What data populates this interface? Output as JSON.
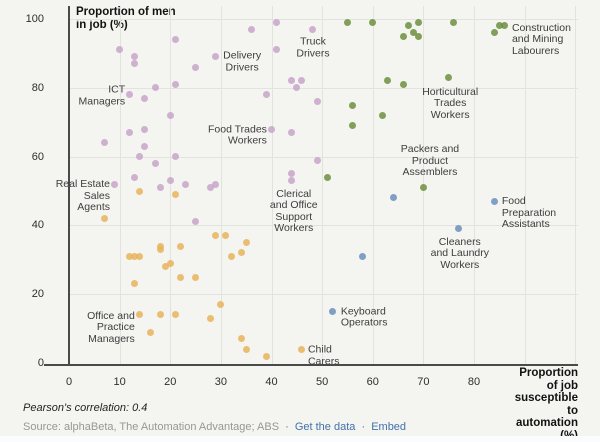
{
  "chart": {
    "y_axis_title_lines": [
      "Proportion of men",
      "in job (%)"
    ],
    "x_axis_title_lines": [
      "Proportion of job",
      "susceptible to",
      "automation (%)"
    ],
    "footer": {
      "correlation": "Pearson's correlation: 0.4",
      "source_prefix": "Source: alphaBeta, The Automation Advantage; ABS",
      "separator": "·",
      "link1": "Get the data",
      "link2": "Embed"
    }
  },
  "chart_data": {
    "type": "scatter",
    "title": "",
    "xlabel": "Proportion of job susceptible to automation (%)",
    "ylabel": "Proportion of men in job (%)",
    "xlim": [
      0,
      100
    ],
    "ylim": [
      0,
      100
    ],
    "x_ticks": [
      0,
      10,
      20,
      30,
      40,
      50,
      60,
      70,
      80
    ],
    "x_gridlines": [
      10,
      20,
      30,
      40,
      50,
      60,
      70,
      80,
      90,
      100
    ],
    "y_ticks": [
      0,
      20,
      40,
      60,
      80,
      100
    ],
    "y_gridlines": [
      20,
      40,
      60,
      80,
      100
    ],
    "grid": true,
    "legend": "none",
    "annotation_note": "Pearson's correlation: 0.4",
    "series": [
      {
        "name": "purple",
        "color": "#c7a3c9",
        "points": [
          [
            10,
            91
          ],
          [
            13,
            89
          ],
          [
            13,
            87
          ],
          [
            21,
            94
          ],
          [
            36,
            97
          ],
          [
            41,
            99
          ],
          [
            48,
            97
          ],
          [
            41,
            91
          ],
          [
            29,
            89
          ],
          [
            25,
            86
          ],
          [
            44,
            82
          ],
          [
            46,
            82
          ],
          [
            45,
            80
          ],
          [
            12,
            78
          ],
          [
            15,
            77
          ],
          [
            17,
            80
          ],
          [
            21,
            81
          ],
          [
            39,
            78
          ],
          [
            49,
            76
          ],
          [
            20,
            72
          ],
          [
            15,
            68
          ],
          [
            12,
            67
          ],
          [
            7,
            64
          ],
          [
            15,
            63
          ],
          [
            40,
            68
          ],
          [
            44,
            67
          ],
          [
            14,
            60
          ],
          [
            17,
            58
          ],
          [
            21,
            60
          ],
          [
            13,
            54
          ],
          [
            20,
            53
          ],
          [
            18,
            51
          ],
          [
            23,
            52
          ],
          [
            28,
            51
          ],
          [
            29,
            52
          ],
          [
            9,
            52
          ],
          [
            25,
            41
          ],
          [
            44,
            55
          ],
          [
            44,
            53
          ],
          [
            49,
            59
          ]
        ]
      },
      {
        "name": "orange",
        "color": "#e8b45c",
        "points": [
          [
            14,
            50
          ],
          [
            21,
            49
          ],
          [
            7,
            42
          ],
          [
            29,
            37
          ],
          [
            31,
            37
          ],
          [
            18,
            34
          ],
          [
            18,
            33
          ],
          [
            22,
            34
          ],
          [
            35,
            35
          ],
          [
            13,
            31
          ],
          [
            12,
            31
          ],
          [
            14,
            31
          ],
          [
            19,
            28
          ],
          [
            20,
            29
          ],
          [
            22,
            25
          ],
          [
            25,
            25
          ],
          [
            32,
            31
          ],
          [
            34,
            32
          ],
          [
            13,
            23
          ],
          [
            14,
            14
          ],
          [
            18,
            14
          ],
          [
            21,
            14
          ],
          [
            16,
            9
          ],
          [
            28,
            13
          ],
          [
            30,
            17
          ],
          [
            34,
            7
          ],
          [
            35,
            4
          ],
          [
            39,
            2
          ],
          [
            46,
            4
          ]
        ]
      },
      {
        "name": "green",
        "color": "#6d8f3f",
        "points": [
          [
            55,
            99
          ],
          [
            60,
            99
          ],
          [
            67,
            98
          ],
          [
            69,
            99
          ],
          [
            66,
            95
          ],
          [
            68,
            96
          ],
          [
            69,
            95
          ],
          [
            76,
            99
          ],
          [
            84,
            96
          ],
          [
            85,
            98
          ],
          [
            86,
            98
          ],
          [
            63,
            82
          ],
          [
            66,
            81
          ],
          [
            75,
            83
          ],
          [
            56,
            75
          ],
          [
            62,
            72
          ],
          [
            56,
            69
          ],
          [
            51,
            54
          ],
          [
            70,
            51
          ]
        ]
      },
      {
        "name": "blue",
        "color": "#6b8fc0",
        "points": [
          [
            64,
            48
          ],
          [
            84,
            47
          ],
          [
            77,
            39
          ],
          [
            58,
            31
          ],
          [
            52,
            15
          ]
        ]
      }
    ],
    "labels": [
      {
        "lines": [
          "Construction",
          "and Mining",
          "Labourers"
        ],
        "x": 87.5,
        "y": 94.0,
        "align": "left"
      },
      {
        "lines": [
          "Truck",
          "Drivers"
        ],
        "x": 48.2,
        "y": 91.5,
        "align": "center"
      },
      {
        "lines": [
          "Delivery",
          "Drivers"
        ],
        "x": 34.2,
        "y": 87.5,
        "align": "center"
      },
      {
        "lines": [
          "ICT",
          "Managers"
        ],
        "x": 11.1,
        "y": 77.5,
        "align": "right"
      },
      {
        "lines": [
          "Horticultural",
          "Trades",
          "Workers"
        ],
        "x": 75.3,
        "y": 75.3,
        "align": "center"
      },
      {
        "lines": [
          "Food Trades",
          "Workers"
        ],
        "x": 39.1,
        "y": 66.0,
        "align": "right"
      },
      {
        "lines": [
          "Packers and",
          "Product",
          "Assemblers"
        ],
        "x": 71.3,
        "y": 58.7,
        "align": "center"
      },
      {
        "lines": [
          "Real Estate",
          "Sales",
          "Agents"
        ],
        "x": 8.1,
        "y": 48.5,
        "align": "right"
      },
      {
        "lines": [
          "Clerical",
          "and Office",
          "Support",
          "Workers"
        ],
        "x": 44.4,
        "y": 43.9,
        "align": "center"
      },
      {
        "lines": [
          "Food",
          "Preparation",
          "Assistants"
        ],
        "x": 85.5,
        "y": 43.6,
        "align": "left"
      },
      {
        "lines": [
          "Cleaners",
          "and Laundry",
          "Workers"
        ],
        "x": 77.2,
        "y": 31.7,
        "align": "center"
      },
      {
        "lines": [
          "Keyboard",
          "Operators"
        ],
        "x": 53.7,
        "y": 13.1,
        "align": "left"
      },
      {
        "lines": [
          "Office and",
          "Practice",
          "Managers"
        ],
        "x": 13.0,
        "y": 10.2,
        "align": "right"
      },
      {
        "lines": [
          "Child",
          "Carers"
        ],
        "x": 47.2,
        "y": 2.0,
        "align": "left"
      }
    ]
  }
}
